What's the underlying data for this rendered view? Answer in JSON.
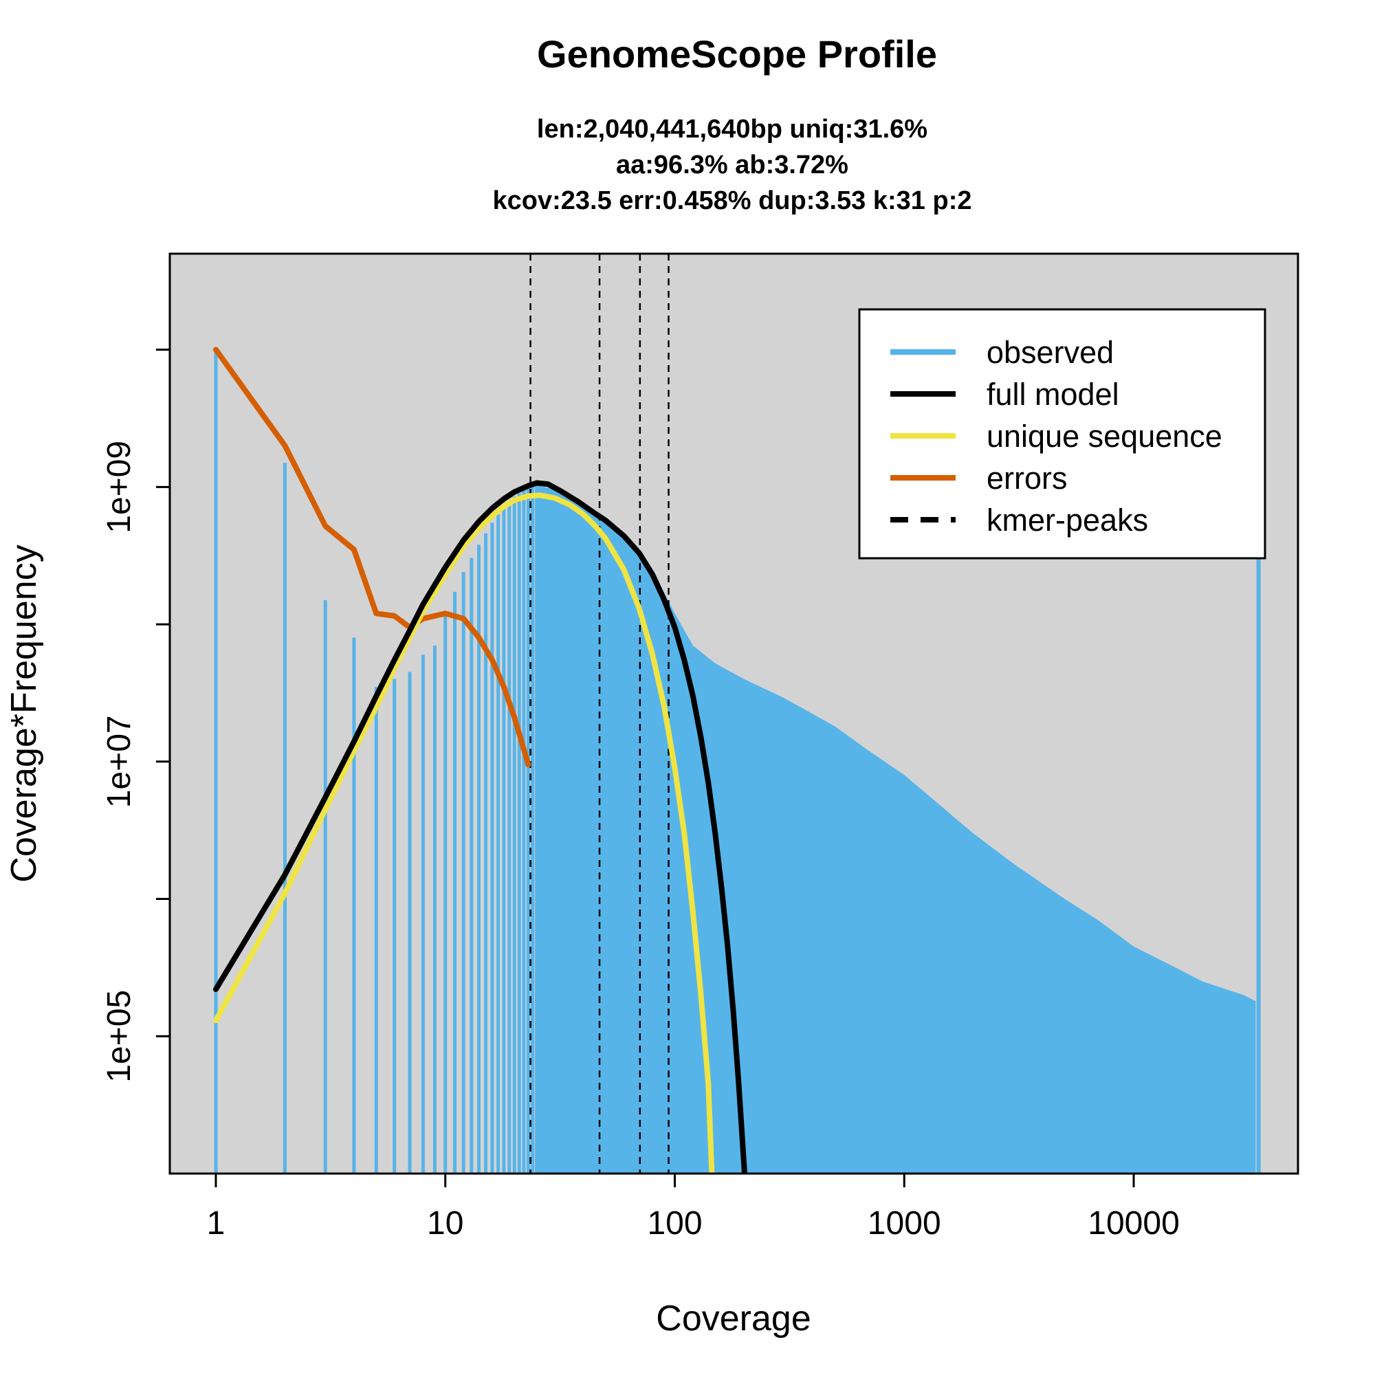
{
  "chart_data": {
    "type": "line",
    "title": "GenomeScope Profile",
    "subtitle_lines": [
      "len:2,040,441,640bp uniq:31.6%",
      "aa:96.3% ab:3.72%",
      "kcov:23.5 err:0.458%  dup:3.53  k:31 p:2"
    ],
    "xlabel": "Coverage",
    "ylabel": "Coverage*Frequency",
    "x_scale": "log",
    "y_scale": "log",
    "xlim": [
      0.63,
      52000
    ],
    "ylim": [
      10000,
      50000000000
    ],
    "x_ticks": [
      {
        "value": 1,
        "label": "1"
      },
      {
        "value": 10,
        "label": "10"
      },
      {
        "value": 100,
        "label": "100"
      },
      {
        "value": 1000,
        "label": "1000"
      },
      {
        "value": 10000,
        "label": "10000"
      }
    ],
    "y_ticks": [
      {
        "value": 100000,
        "label": "1e+05"
      },
      {
        "value": 1000000,
        "label": ""
      },
      {
        "value": 10000000,
        "label": "1e+07"
      },
      {
        "value": 100000000,
        "label": ""
      },
      {
        "value": 1000000000,
        "label": "1e+09"
      },
      {
        "value": 10000000000,
        "label": ""
      }
    ],
    "background": "#d3d3d3",
    "grid": false,
    "legend_position": "top-right",
    "kmer_peaks": [
      23.5,
      47,
      70.5,
      94
    ],
    "observed": {
      "name": "observed",
      "color": "#56b4e9",
      "points": [
        [
          1,
          10000000000
        ],
        [
          2,
          1500000000
        ],
        [
          3,
          150000000
        ],
        [
          4,
          80000000
        ],
        [
          5,
          35000000
        ],
        [
          6,
          40000000
        ],
        [
          7,
          45000000
        ],
        [
          8,
          60000000
        ],
        [
          9,
          70000000
        ],
        [
          10,
          120000000
        ],
        [
          12,
          240000000
        ],
        [
          14,
          380000000
        ],
        [
          16,
          550000000
        ],
        [
          18,
          720000000
        ],
        [
          20,
          850000000
        ],
        [
          22,
          950000000
        ],
        [
          25,
          1030000000
        ],
        [
          30,
          960000000
        ],
        [
          35,
          850000000
        ],
        [
          40,
          720000000
        ],
        [
          50,
          560000000
        ],
        [
          60,
          460000000
        ],
        [
          70,
          350000000
        ],
        [
          80,
          250000000
        ],
        [
          100,
          120000000
        ],
        [
          120,
          70000000
        ],
        [
          150,
          52000000
        ],
        [
          200,
          40000000
        ],
        [
          300,
          29000000
        ],
        [
          500,
          18000000
        ],
        [
          700,
          12000000
        ],
        [
          1000,
          8000000
        ],
        [
          2000,
          3000000
        ],
        [
          3000,
          1800000
        ],
        [
          5000,
          1000000
        ],
        [
          7000,
          700000
        ],
        [
          10000,
          450000
        ],
        [
          15000,
          320000
        ],
        [
          20000,
          250000
        ],
        [
          30000,
          200000
        ],
        [
          34000,
          180000
        ],
        [
          35000,
          18000000000
        ]
      ]
    },
    "full_model": {
      "name": "full model",
      "color": "#000000",
      "points": [
        [
          1,
          220000
        ],
        [
          2,
          1500000
        ],
        [
          3,
          5500000
        ],
        [
          4,
          14000000
        ],
        [
          5,
          30000000
        ],
        [
          6,
          55000000
        ],
        [
          7,
          90000000
        ],
        [
          8,
          140000000
        ],
        [
          10,
          260000000
        ],
        [
          12,
          410000000
        ],
        [
          14,
          560000000
        ],
        [
          16,
          700000000
        ],
        [
          18,
          820000000
        ],
        [
          20,
          920000000
        ],
        [
          23,
          1020000000
        ],
        [
          25,
          1070000000
        ],
        [
          28,
          1050000000
        ],
        [
          32,
          930000000
        ],
        [
          38,
          780000000
        ],
        [
          45,
          640000000
        ],
        [
          50,
          570000000
        ],
        [
          60,
          440000000
        ],
        [
          70,
          330000000
        ],
        [
          80,
          230000000
        ],
        [
          90,
          150000000
        ],
        [
          100,
          95000000
        ],
        [
          110,
          55000000
        ],
        [
          120,
          30000000
        ],
        [
          130,
          15000000
        ],
        [
          140,
          7000000
        ],
        [
          150,
          3000000
        ],
        [
          160,
          1200000
        ],
        [
          170,
          450000
        ],
        [
          180,
          150000
        ],
        [
          190,
          45000
        ],
        [
          200,
          12000
        ],
        [
          205,
          6000
        ]
      ]
    },
    "unique_sequence": {
      "name": "unique sequence",
      "color": "#f0e442",
      "points": [
        [
          1,
          130000
        ],
        [
          2,
          1100000
        ],
        [
          3,
          4500000
        ],
        [
          4,
          12000000
        ],
        [
          5,
          25000000
        ],
        [
          6,
          48000000
        ],
        [
          7,
          80000000
        ],
        [
          8,
          125000000
        ],
        [
          10,
          230000000
        ],
        [
          12,
          370000000
        ],
        [
          14,
          500000000
        ],
        [
          16,
          620000000
        ],
        [
          18,
          720000000
        ],
        [
          20,
          800000000
        ],
        [
          23,
          860000000
        ],
        [
          26,
          870000000
        ],
        [
          30,
          830000000
        ],
        [
          35,
          740000000
        ],
        [
          40,
          630000000
        ],
        [
          45,
          520000000
        ],
        [
          50,
          420000000
        ],
        [
          60,
          250000000
        ],
        [
          70,
          130000000
        ],
        [
          80,
          60000000
        ],
        [
          90,
          25000000
        ],
        [
          100,
          9000000
        ],
        [
          110,
          3000000
        ],
        [
          120,
          800000
        ],
        [
          130,
          200000
        ],
        [
          140,
          45000
        ],
        [
          145,
          10000
        ]
      ]
    },
    "errors": {
      "name": "errors",
      "color": "#d55e00",
      "points": [
        [
          1,
          10000000000
        ],
        [
          2,
          2000000000
        ],
        [
          3,
          520000000
        ],
        [
          4,
          350000000
        ],
        [
          5,
          120000000
        ],
        [
          6,
          115000000
        ],
        [
          7,
          95000000
        ],
        [
          8,
          110000000
        ],
        [
          10,
          120000000
        ],
        [
          12,
          110000000
        ],
        [
          14,
          80000000
        ],
        [
          16,
          55000000
        ],
        [
          18,
          35000000
        ],
        [
          20,
          21000000
        ],
        [
          23,
          9500000
        ]
      ]
    },
    "legend": [
      {
        "label": "observed",
        "color": "#56b4e9",
        "style": "solid"
      },
      {
        "label": "full model",
        "color": "#000000",
        "style": "solid"
      },
      {
        "label": "unique sequence",
        "color": "#f0e442",
        "style": "solid"
      },
      {
        "label": "errors",
        "color": "#d55e00",
        "style": "solid"
      },
      {
        "label": "kmer-peaks",
        "color": "#000000",
        "style": "dashed"
      }
    ]
  }
}
